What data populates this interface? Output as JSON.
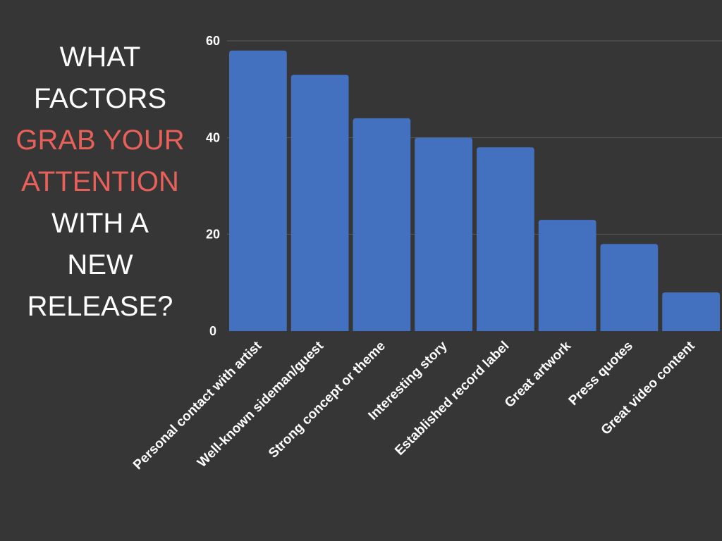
{
  "title": {
    "lines": [
      {
        "text": "WHAT",
        "highlight": false
      },
      {
        "text": "FACTORS",
        "highlight": false
      },
      {
        "text": "GRAB YOUR",
        "highlight": true
      },
      {
        "text": "ATTENTION",
        "highlight": true
      },
      {
        "text": "WITH A",
        "highlight": false
      },
      {
        "text": "NEW",
        "highlight": false
      },
      {
        "text": "RELEASE?",
        "highlight": false
      }
    ]
  },
  "colors": {
    "background": "#363636",
    "bar": "#4370bf",
    "text": "#ffffff",
    "highlight": "#e8605a",
    "grid": "#5a5a5a"
  },
  "chart_data": {
    "type": "bar",
    "categories": [
      "Personal contact with artist",
      "Well-known sideman/guest",
      "Strong concept or theme",
      "Interesting story",
      "Established record label",
      "Great artwork",
      "Press quotes",
      "Great video content"
    ],
    "values": [
      58,
      53,
      44,
      40,
      38,
      23,
      18,
      8
    ],
    "yticks": [
      0,
      20,
      40,
      60
    ],
    "ylim": [
      0,
      60
    ],
    "grid": true,
    "legend": "none"
  }
}
